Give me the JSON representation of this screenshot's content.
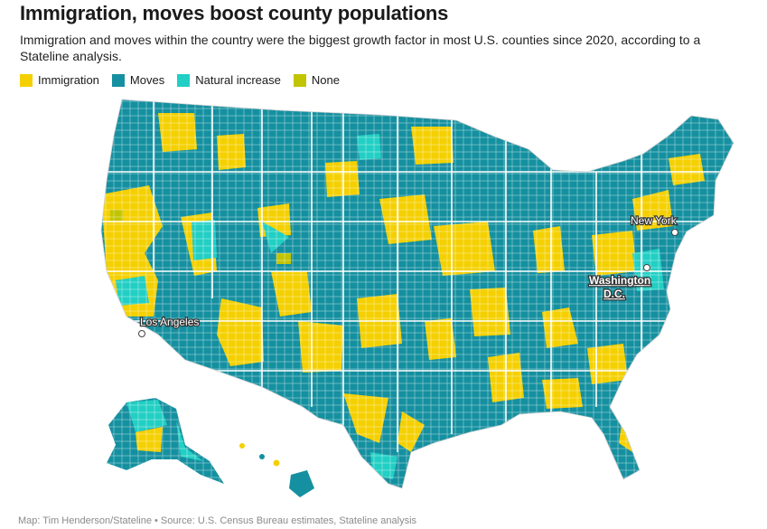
{
  "title": "Immigration, moves boost county populations",
  "subtitle": "Immigration and moves within the country were the biggest growth factor in most U.S. counties since 2020, according to a Stateline analysis.",
  "legend": [
    {
      "label": "Immigration",
      "color": "#f5d000"
    },
    {
      "label": "Moves",
      "color": "#1590a0"
    },
    {
      "label": "Natural increase",
      "color": "#22cfc4"
    },
    {
      "label": "None",
      "color": "#c2c400"
    }
  ],
  "cities": {
    "los_angeles": "Los Angeles",
    "new_york": "New York",
    "washington_line1": "Washington",
    "washington_line2": "D.C."
  },
  "source": "Map: Tim Henderson/Stateline • Source: U.S. Census Bureau estimates, Stateline analysis"
}
